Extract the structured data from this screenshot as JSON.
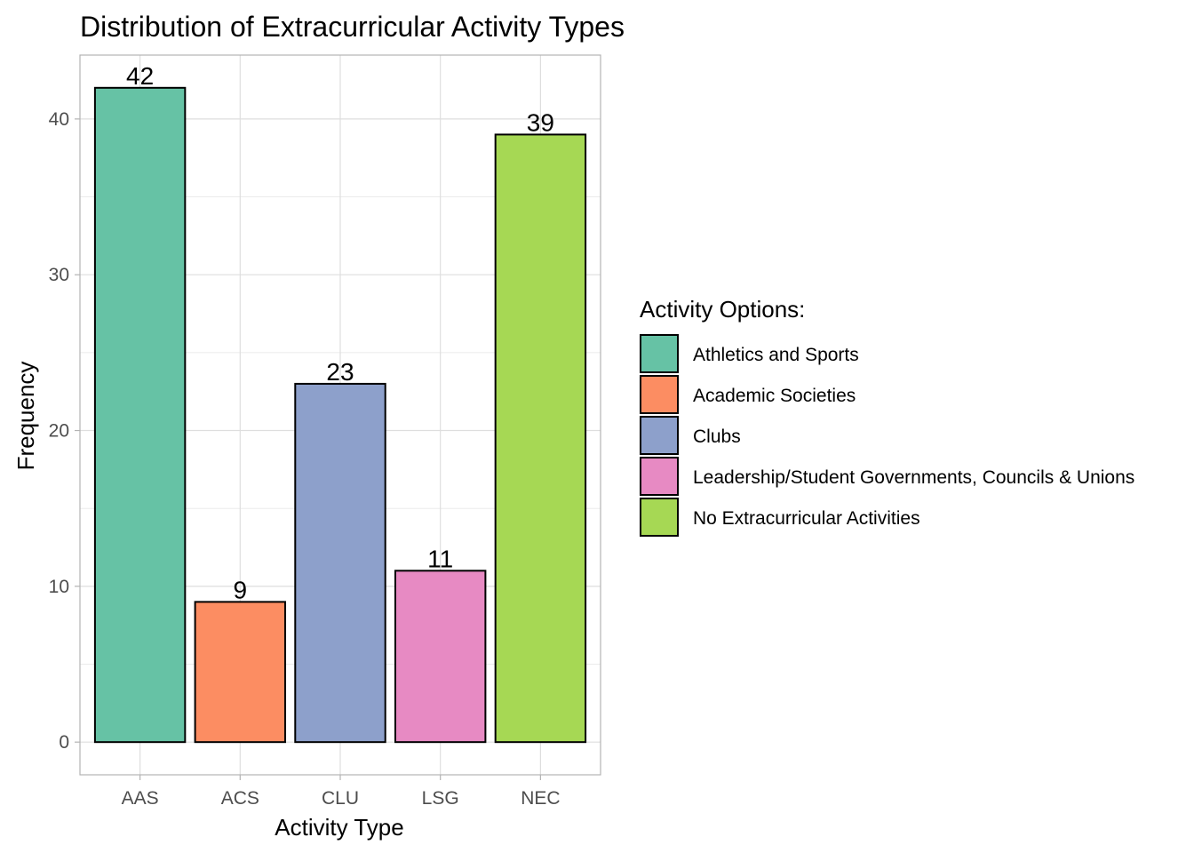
{
  "chart_data": {
    "type": "bar",
    "title": "Distribution of Extracurricular Activity Types",
    "xlabel": "Activity Type",
    "ylabel": "Frequency",
    "categories": [
      "AAS",
      "ACS",
      "CLU",
      "LSG",
      "NEC"
    ],
    "values": [
      42,
      9,
      23,
      11,
      39
    ],
    "data_labels": [
      "42",
      "9",
      "23",
      "11",
      "39"
    ],
    "y_ticks": [
      0,
      10,
      20,
      30,
      40
    ],
    "y_tick_labels": [
      "0",
      "10",
      "20",
      "30",
      "40"
    ],
    "ylim": [
      -2.1,
      44.1
    ],
    "grid": true,
    "legend_position": "right",
    "legend": {
      "title": "Activity Options:",
      "items": [
        {
          "label": "Athletics and Sports",
          "color": "#66C2A5"
        },
        {
          "label": "Academic Societies",
          "color": "#FC8D62"
        },
        {
          "label": "Clubs",
          "color": "#8DA0CB"
        },
        {
          "label": "Leadership/Student Governments, Councils & Unions",
          "color": "#E78AC3"
        },
        {
          "label": "No Extracurricular Activities",
          "color": "#A6D854"
        }
      ]
    },
    "colors": [
      "#66C2A5",
      "#FC8D62",
      "#8DA0CB",
      "#E78AC3",
      "#A6D854"
    ]
  }
}
